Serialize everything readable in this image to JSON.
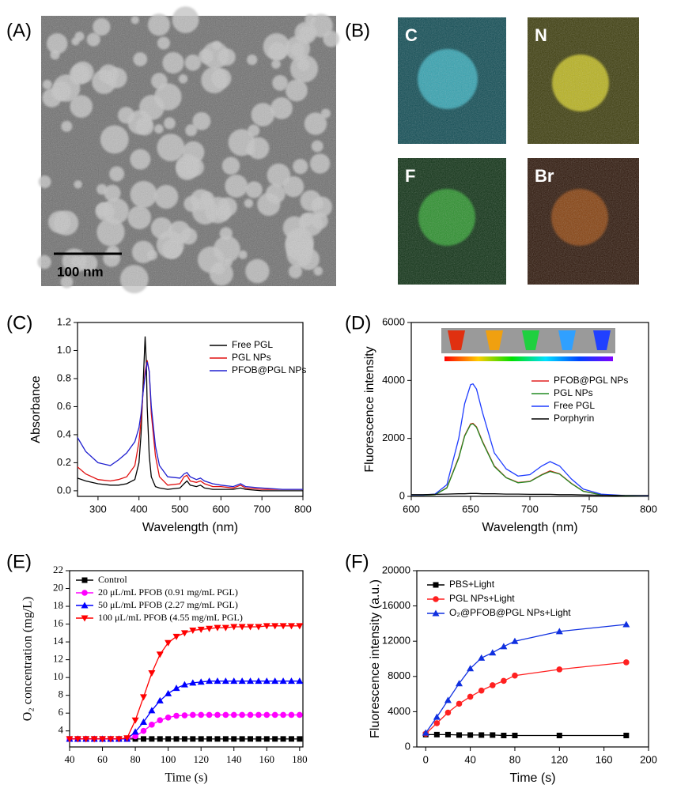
{
  "figure": {
    "panel_labels": [
      "(A)",
      "(B)",
      "(C)",
      "(D)",
      "(E)",
      "(F)"
    ],
    "scale_bar": "100 nm",
    "element_maps": [
      "C",
      "N",
      "F",
      "Br"
    ]
  },
  "chart_data": [
    {
      "type": "line",
      "x_label": "Wavelength (nm)",
      "y_label": "Absorbance",
      "x": [
        250,
        270,
        300,
        330,
        350,
        370,
        390,
        400,
        405,
        410,
        415,
        418,
        420,
        425,
        430,
        440,
        450,
        470,
        500,
        510,
        517,
        525,
        540,
        550,
        560,
        580,
        600,
        630,
        648,
        660,
        700,
        750,
        800
      ],
      "xlim": [
        250,
        800
      ],
      "xticks": [
        300,
        400,
        500,
        600,
        700,
        800
      ],
      "ylim": [
        -0.04,
        1.2
      ],
      "yticks": [
        {
          "value": 0,
          "label": "0.0"
        },
        0.2,
        0.4,
        0.6,
        0.8,
        {
          "value": 1,
          "label": "1.0"
        },
        1.2
      ],
      "series": [
        {
          "name": "Free PGL",
          "color": "#000000",
          "values": [
            0.09,
            0.07,
            0.05,
            0.04,
            0.04,
            0.05,
            0.08,
            0.2,
            0.4,
            0.75,
            1.1,
            0.9,
            0.6,
            0.25,
            0.1,
            0.03,
            0.02,
            0.01,
            0.02,
            0.05,
            0.07,
            0.04,
            0.03,
            0.04,
            0.02,
            0.01,
            0.01,
            0.01,
            0.02,
            0.01,
            0,
            0,
            0
          ]
        },
        {
          "name": "PGL NPs",
          "color": "#e01010",
          "values": [
            0.17,
            0.12,
            0.08,
            0.07,
            0.08,
            0.1,
            0.18,
            0.35,
            0.5,
            0.7,
            0.85,
            0.9,
            0.93,
            0.85,
            0.55,
            0.25,
            0.1,
            0.04,
            0.05,
            0.1,
            0.11,
            0.07,
            0.06,
            0.07,
            0.05,
            0.03,
            0.03,
            0.02,
            0.04,
            0.02,
            0.01,
            0.01,
            0.01
          ]
        },
        {
          "name": "PFOB@PGL NPs",
          "color": "#2020d0",
          "values": [
            0.38,
            0.28,
            0.2,
            0.18,
            0.22,
            0.27,
            0.35,
            0.45,
            0.55,
            0.7,
            0.82,
            0.88,
            0.92,
            0.85,
            0.6,
            0.32,
            0.18,
            0.1,
            0.09,
            0.12,
            0.13,
            0.1,
            0.08,
            0.09,
            0.07,
            0.05,
            0.04,
            0.03,
            0.05,
            0.03,
            0.02,
            0.01,
            0.01
          ]
        }
      ]
    },
    {
      "type": "line",
      "x_label": "Wavelength (nm)",
      "y_label": "Fluorescence intensity",
      "x": [
        600,
        610,
        620,
        630,
        640,
        645,
        650,
        652,
        655,
        660,
        670,
        680,
        690,
        700,
        710,
        717,
        725,
        735,
        745,
        760,
        780,
        800
      ],
      "xlim": [
        600,
        800
      ],
      "xticks": [
        600,
        650,
        700,
        750,
        800
      ],
      "ylim": [
        0,
        6000
      ],
      "yticks": [
        0,
        2000,
        4000,
        6000
      ],
      "series": [
        {
          "name": "PFOB@PGL NPs",
          "color": "#e02020",
          "values": [
            40,
            40,
            60,
            300,
            1350,
            2100,
            2500,
            2520,
            2400,
            1900,
            1050,
            650,
            480,
            520,
            750,
            880,
            780,
            450,
            180,
            60,
            20,
            10
          ]
        },
        {
          "name": "PGL NPs",
          "color": "#228b22",
          "values": [
            40,
            40,
            60,
            290,
            1320,
            2080,
            2480,
            2500,
            2380,
            1880,
            1030,
            640,
            470,
            510,
            740,
            860,
            770,
            440,
            175,
            55,
            20,
            10
          ]
        },
        {
          "name": "Free PGL",
          "color": "#1e3cff",
          "values": [
            50,
            50,
            80,
            400,
            2000,
            3200,
            3850,
            3880,
            3700,
            2900,
            1500,
            950,
            700,
            750,
            1050,
            1200,
            1050,
            600,
            250,
            80,
            30,
            20
          ]
        },
        {
          "name": "Porphyrin",
          "color": "#000000",
          "values": [
            60,
            60,
            70,
            80,
            90,
            90,
            100,
            100,
            100,
            90,
            90,
            80,
            80,
            70,
            70,
            70,
            60,
            60,
            50,
            40,
            30,
            30
          ]
        }
      ]
    },
    {
      "type": "line",
      "x_label": "Time (s)",
      "y_label": "O₂ concentration (mg/L)",
      "x": [
        40,
        45,
        50,
        55,
        60,
        65,
        70,
        75,
        80,
        85,
        90,
        95,
        100,
        105,
        110,
        115,
        120,
        125,
        130,
        135,
        140,
        145,
        150,
        155,
        160,
        165,
        170,
        175,
        180
      ],
      "xlim": [
        40,
        182
      ],
      "xticks": [
        40,
        60,
        80,
        100,
        120,
        140,
        160,
        180
      ],
      "ylim": [
        2.2,
        22
      ],
      "yticks": [
        4,
        6,
        8,
        10,
        12,
        14,
        16,
        18,
        20,
        22
      ],
      "series": [
        {
          "name": "Control",
          "color": "#000000",
          "marker": "square",
          "values": [
            3.1,
            3.1,
            3.1,
            3.1,
            3.1,
            3.1,
            3.1,
            3.1,
            3.1,
            3.1,
            3.1,
            3.1,
            3.1,
            3.1,
            3.1,
            3.1,
            3.1,
            3.1,
            3.1,
            3.1,
            3.1,
            3.1,
            3.1,
            3.1,
            3.1,
            3.1,
            3.1,
            3.1,
            3.1
          ]
        },
        {
          "name": "20 μL/mL PFOB (0.91 mg/mL PGL)",
          "color": "#ff00ff",
          "marker": "circle",
          "values": [
            3.1,
            3.1,
            3.1,
            3.1,
            3.1,
            3.1,
            3.1,
            3.1,
            3.4,
            4.0,
            4.7,
            5.2,
            5.5,
            5.7,
            5.75,
            5.8,
            5.8,
            5.8,
            5.8,
            5.8,
            5.8,
            5.8,
            5.8,
            5.8,
            5.8,
            5.8,
            5.8,
            5.8,
            5.8
          ]
        },
        {
          "name": "50 μL/mL PFOB (2.27 mg/mL PGL)",
          "color": "#0000ff",
          "marker": "triangle-up",
          "values": [
            3.1,
            3.1,
            3.1,
            3.1,
            3.1,
            3.1,
            3.1,
            3.1,
            3.9,
            5.0,
            6.3,
            7.4,
            8.2,
            8.8,
            9.2,
            9.4,
            9.5,
            9.6,
            9.6,
            9.6,
            9.6,
            9.6,
            9.6,
            9.6,
            9.6,
            9.6,
            9.6,
            9.6,
            9.6
          ]
        },
        {
          "name": "100 μL/mL PFOB (4.55 mg/mL PGL)",
          "color": "#ff0000",
          "marker": "triangle-down",
          "values": [
            3.1,
            3.1,
            3.1,
            3.1,
            3.1,
            3.1,
            3.1,
            3.2,
            5.2,
            7.8,
            10.5,
            12.6,
            13.9,
            14.6,
            15.0,
            15.3,
            15.4,
            15.5,
            15.6,
            15.6,
            15.7,
            15.7,
            15.7,
            15.7,
            15.8,
            15.8,
            15.8,
            15.8,
            15.8
          ]
        }
      ]
    },
    {
      "type": "line",
      "x_label": "Time (s)",
      "y_label": "Fluorescence intensity (a.u.)",
      "x": [
        0,
        10,
        20,
        30,
        40,
        50,
        60,
        70,
        80,
        120,
        180
      ],
      "xlim": [
        -8,
        200
      ],
      "xticks": [
        0,
        40,
        80,
        120,
        160,
        200
      ],
      "ylim": [
        0,
        20000
      ],
      "yticks": [
        0,
        4000,
        8000,
        12000,
        16000,
        20000
      ],
      "series": [
        {
          "name": "PBS+Light",
          "color": "#000000",
          "marker": "square",
          "values": [
            1400,
            1400,
            1400,
            1350,
            1350,
            1350,
            1350,
            1300,
            1300,
            1300,
            1300
          ]
        },
        {
          "name": "PGL NPs+Light",
          "color": "#ff2020",
          "marker": "circle",
          "values": [
            1500,
            2700,
            3900,
            4900,
            5700,
            6400,
            7000,
            7500,
            8100,
            8800,
            9600
          ]
        },
        {
          "name": "O₂@PFOB@PGL NPs+Light",
          "color": "#1030e0",
          "marker": "triangle-up",
          "values": [
            1600,
            3400,
            5300,
            7200,
            8900,
            10100,
            10700,
            11400,
            12000,
            13100,
            13900
          ]
        }
      ]
    }
  ]
}
